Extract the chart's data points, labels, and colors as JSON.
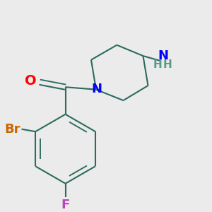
{
  "background_color": "#ebebeb",
  "bond_color": "#2d6b5e",
  "bond_width": 1.5,
  "atom_colors": {
    "O": "#ff0000",
    "N": "#0000ff",
    "Br": "#cc6600",
    "F": "#bb44bb",
    "NH2_H": "#5a9a8a"
  },
  "font_size": 13,
  "font_size_H": 11
}
